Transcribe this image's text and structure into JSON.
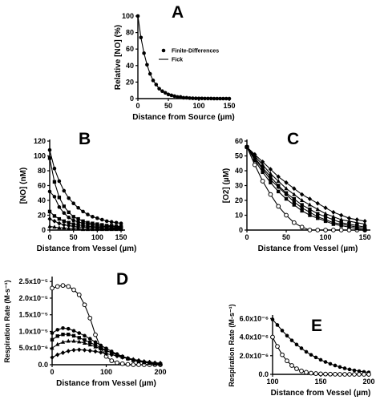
{
  "chart_data": [
    {
      "panel": "A",
      "type": "line",
      "xlabel": "Distance from Source (µm)",
      "ylabel": "Relative [NO] (%)",
      "xlim": [
        0,
        150
      ],
      "ylim": [
        0,
        100
      ],
      "xticks": [
        0,
        50,
        100,
        150
      ],
      "yticks": [
        0,
        20,
        40,
        60,
        80,
        100
      ],
      "legend": {
        "position": "right",
        "entries": [
          "Finite-Differences",
          "Fick"
        ]
      },
      "series": [
        {
          "name": "Finite-Differences",
          "marker": "filled-circle",
          "line": false,
          "x": [
            0,
            5,
            10,
            15,
            20,
            25,
            30,
            35,
            40,
            45,
            50,
            55,
            60,
            65,
            70,
            75,
            80,
            85,
            90,
            95,
            100,
            105,
            110,
            115,
            120,
            125,
            130,
            135,
            140,
            145,
            150
          ],
          "y": [
            100,
            74,
            55,
            41,
            30,
            22,
            17,
            12,
            9,
            7,
            5,
            4,
            3,
            2,
            2,
            1,
            1,
            0.6,
            0.4,
            0.3,
            0.2,
            0.2,
            0.1,
            0.1,
            0.1,
            0,
            0,
            0,
            0,
            0,
            0
          ]
        },
        {
          "name": "Fick",
          "marker": "none",
          "line": true,
          "x": [
            0,
            5,
            10,
            15,
            20,
            25,
            30,
            35,
            40,
            45,
            50,
            55,
            60,
            65,
            70,
            75,
            80,
            85,
            90,
            95,
            100,
            105,
            110,
            115,
            120,
            125,
            130,
            135,
            140,
            145,
            150
          ],
          "y": [
            100,
            74,
            55,
            41,
            30,
            22,
            17,
            12,
            9,
            7,
            5,
            4,
            3,
            2,
            2,
            1,
            1,
            0.6,
            0.4,
            0.3,
            0.2,
            0.2,
            0.1,
            0.1,
            0.1,
            0,
            0,
            0,
            0,
            0,
            0
          ]
        }
      ]
    },
    {
      "panel": "B",
      "type": "line",
      "xlabel": "Distance from Vessel (µm)",
      "ylabel": "[NO] (nM)",
      "xlim": [
        0,
        155
      ],
      "ylim": [
        0,
        120
      ],
      "xticks": [
        0,
        50,
        100,
        150
      ],
      "yticks": [
        0,
        20,
        40,
        60,
        80,
        100,
        120
      ],
      "x": [
        0,
        10,
        20,
        30,
        40,
        50,
        60,
        70,
        80,
        90,
        100,
        110,
        120,
        130,
        140,
        150
      ],
      "series": [
        {
          "marker": "filled-circle",
          "values": [
            108,
            83,
            66,
            53,
            43,
            36,
            30,
            25,
            21,
            18,
            16,
            14,
            12,
            11,
            10,
            9
          ]
        },
        {
          "marker": "filled-square",
          "values": [
            97,
            65,
            44,
            32,
            24,
            18,
            15,
            12,
            10,
            9,
            8,
            7,
            6,
            6,
            5,
            5
          ]
        },
        {
          "marker": "filled-circle",
          "values": [
            52,
            45,
            31,
            23,
            17,
            13,
            11,
            9,
            8,
            7,
            6,
            5,
            5,
            5,
            4,
            4
          ]
        },
        {
          "marker": "filled-square",
          "values": [
            25,
            19,
            15,
            12,
            10,
            8,
            7,
            6,
            5,
            5,
            4,
            4,
            4,
            3,
            3,
            3
          ]
        },
        {
          "marker": "filled-diamond",
          "values": [
            15,
            12,
            9,
            7,
            6,
            5,
            4,
            4,
            3,
            3,
            3,
            2,
            2,
            2,
            2,
            2
          ]
        },
        {
          "marker": "filled-triangle",
          "values": [
            5,
            4,
            3,
            3,
            2,
            2,
            2,
            1,
            1,
            1,
            1,
            1,
            1,
            1,
            1,
            1
          ]
        }
      ]
    },
    {
      "panel": "C",
      "type": "line",
      "xlabel": "Distance from Vessel (µm)",
      "ylabel": "[O2] (µM)",
      "xlim": [
        0,
        155
      ],
      "ylim": [
        0,
        60
      ],
      "xticks": [
        0,
        50,
        100,
        150
      ],
      "yticks": [
        0,
        10,
        20,
        30,
        40,
        50,
        60
      ],
      "x": [
        0,
        10,
        20,
        30,
        40,
        50,
        60,
        70,
        80,
        90,
        100,
        110,
        120,
        130,
        140,
        150
      ],
      "series": [
        {
          "marker": "open-circle",
          "values": [
            56,
            44,
            33,
            24,
            16,
            10,
            5,
            2,
            0,
            0,
            0,
            0,
            0,
            0,
            0,
            0
          ]
        },
        {
          "marker": "filled-square",
          "values": [
            56,
            47,
            39,
            32,
            26,
            21,
            17,
            13,
            10,
            8,
            6,
            4,
            3,
            2,
            1,
            0
          ]
        },
        {
          "marker": "filled-circle",
          "values": [
            56,
            48,
            41,
            34,
            29,
            24,
            19,
            15,
            12,
            9,
            7,
            5,
            4,
            3,
            2,
            1
          ]
        },
        {
          "marker": "filled-square",
          "values": [
            56,
            49,
            42,
            36,
            30,
            25,
            21,
            17,
            14,
            11,
            9,
            7,
            5,
            4,
            3,
            2
          ]
        },
        {
          "marker": "filled-triangle",
          "values": [
            56,
            50,
            44,
            38,
            33,
            28,
            24,
            20,
            17,
            14,
            11,
            9,
            7,
            6,
            5,
            4
          ]
        },
        {
          "marker": "filled-diamond",
          "values": [
            56,
            51,
            46,
            41,
            36,
            32,
            28,
            24,
            21,
            18,
            15,
            12,
            10,
            8,
            7,
            6
          ]
        }
      ]
    },
    {
      "panel": "D",
      "type": "line",
      "xlabel": "Distance from Vessel (µm)",
      "ylabel": "Respiration Rate (M-s⁻¹)",
      "xlim": [
        0,
        200
      ],
      "ylim": [
        0,
        2.6e-05
      ],
      "xticks": [
        0,
        100,
        200
      ],
      "yticks": [
        0,
        5e-06,
        1e-05,
        1.5e-05,
        2e-05,
        2.5e-05
      ],
      "yticklabels": [
        "0.0",
        "5.0x10⁻⁶",
        "1.0x10⁻⁵",
        "1.5x10⁻⁵",
        "2.0x10⁻⁵",
        "2.5x10⁻⁵"
      ],
      "x": [
        0,
        10,
        20,
        30,
        40,
        50,
        60,
        70,
        80,
        90,
        100,
        110,
        120,
        130,
        140,
        150,
        160,
        170,
        180,
        190,
        200
      ],
      "series": [
        {
          "marker": "open-circle",
          "values": [
            2.3e-05,
            2.35e-05,
            2.38e-05,
            2.35e-05,
            2.25e-05,
            2.1e-05,
            1.8e-05,
            1.4e-05,
            9e-06,
            5e-06,
            2.5e-06,
            1.2e-06,
            6e-07,
            3e-07,
            1e-07,
            0,
            0,
            0,
            0,
            0,
            0
          ]
        },
        {
          "marker": "filled-circle",
          "values": [
            9.5e-06,
            1.05e-05,
            1.1e-05,
            1.08e-05,
            1.02e-05,
            9.5e-06,
            8.7e-06,
            7.8e-06,
            6.8e-06,
            5.8e-06,
            4.9e-06,
            4e-06,
            3.2e-06,
            2.5e-06,
            1.9e-06,
            1.4e-06,
            1e-06,
            7e-07,
            5e-07,
            3e-07,
            2e-07
          ]
        },
        {
          "marker": "filled-square",
          "values": [
            7.5e-06,
            8.6e-06,
            9.1e-06,
            9.1e-06,
            8.7e-06,
            8.1e-06,
            7.4e-06,
            6.7e-06,
            5.9e-06,
            5.1e-06,
            4.3e-06,
            3.6e-06,
            2.9e-06,
            2.3e-06,
            1.8e-06,
            1.3e-06,
            1e-06,
            7e-07,
            5e-07,
            3e-07,
            2e-07
          ]
        },
        {
          "marker": "filled-triangle",
          "values": [
            5e-06,
            6.1e-06,
            6.8e-06,
            7.1e-06,
            7.1e-06,
            6.9e-06,
            6.5e-06,
            6e-06,
            5.4e-06,
            4.8e-06,
            4.2e-06,
            3.6e-06,
            3e-06,
            2.5e-06,
            2e-06,
            1.6e-06,
            1.2e-06,
            9e-07,
            7e-07,
            5e-07,
            3e-07
          ]
        },
        {
          "marker": "filled-diamond",
          "values": [
            2.2e-06,
            3e-06,
            3.6e-06,
            4.1e-06,
            4.4e-06,
            4.5e-06,
            4.4e-06,
            4.2e-06,
            4e-06,
            3.7e-06,
            3.3e-06,
            3e-06,
            2.6e-06,
            2.2e-06,
            1.9e-06,
            1.6e-06,
            1.3e-06,
            1e-06,
            8e-07,
            6e-07,
            5e-07
          ]
        }
      ]
    },
    {
      "panel": "E",
      "type": "line",
      "xlabel": "Distance from Vessel (µm)",
      "ylabel": "Respiration Rate (M-s⁻¹)",
      "xlim": [
        100,
        200
      ],
      "ylim": [
        0,
        6.2e-06
      ],
      "xticks": [
        100,
        150,
        200
      ],
      "yticks": [
        0,
        2e-06,
        4e-06,
        6e-06
      ],
      "yticklabels": [
        "0.0",
        "2.0x10⁻⁶",
        "4.0x10⁻⁶",
        "6.0x10⁻⁶"
      ],
      "x": [
        100,
        105,
        110,
        115,
        120,
        125,
        130,
        135,
        140,
        145,
        150,
        155,
        160,
        165,
        170,
        175,
        180,
        185,
        190,
        195,
        200
      ],
      "series": [
        {
          "marker": "filled-circle",
          "values": [
            5.9e-06,
            5.3e-06,
            4.7e-06,
            4.15e-06,
            3.65e-06,
            3.2e-06,
            2.8e-06,
            2.42e-06,
            2.1e-06,
            1.82e-06,
            1.56e-06,
            1.33e-06,
            1.13e-06,
            9.5e-07,
            7.9e-07,
            6.5e-07,
            5.3e-07,
            4.3e-07,
            3.4e-07,
            2.7e-07,
            2.1e-07
          ]
        },
        {
          "marker": "open-circle",
          "values": [
            4e-06,
            3e-06,
            2.1e-06,
            1.45e-06,
            9.5e-07,
            6e-07,
            3.7e-07,
            2.2e-07,
            1.3e-07,
            8e-08,
            5e-08,
            3e-08,
            2e-08,
            1e-08,
            0,
            0,
            0,
            0,
            0,
            0,
            0
          ]
        }
      ]
    }
  ]
}
